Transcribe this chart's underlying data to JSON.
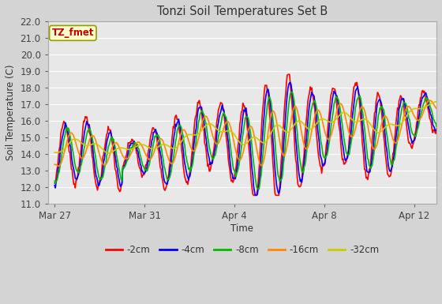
{
  "title": "Tonzi Soil Temperatures Set B",
  "xlabel": "Time",
  "ylabel": "Soil Temperature (C)",
  "ylim": [
    11.0,
    22.0
  ],
  "yticks": [
    11.0,
    12.0,
    13.0,
    14.0,
    15.0,
    16.0,
    17.0,
    18.0,
    19.0,
    20.0,
    21.0,
    22.0
  ],
  "fig_bg_color": "#d4d4d4",
  "plot_bg_color": "#e8e8e8",
  "grid_color": "#ffffff",
  "annotation_text": "TZ_fmet",
  "annotation_bg": "#ffffcc",
  "annotation_border": "#999900",
  "annotation_text_color": "#cc0000",
  "series": [
    {
      "label": "-2cm",
      "color": "#ff0000",
      "lw": 1.2
    },
    {
      "label": "-4cm",
      "color": "#0000ff",
      "lw": 1.2
    },
    {
      "label": "-8cm",
      "color": "#00bb00",
      "lw": 1.2
    },
    {
      "label": "-16cm",
      "color": "#ff8800",
      "lw": 1.2
    },
    {
      "label": "-32cm",
      "color": "#cccc00",
      "lw": 1.2
    }
  ],
  "xtick_labels": [
    "Mar 27",
    "Mar 31",
    "Apr 4",
    "Apr 8",
    "Apr 12"
  ],
  "xtick_positions": [
    0,
    4,
    8,
    12,
    16
  ]
}
